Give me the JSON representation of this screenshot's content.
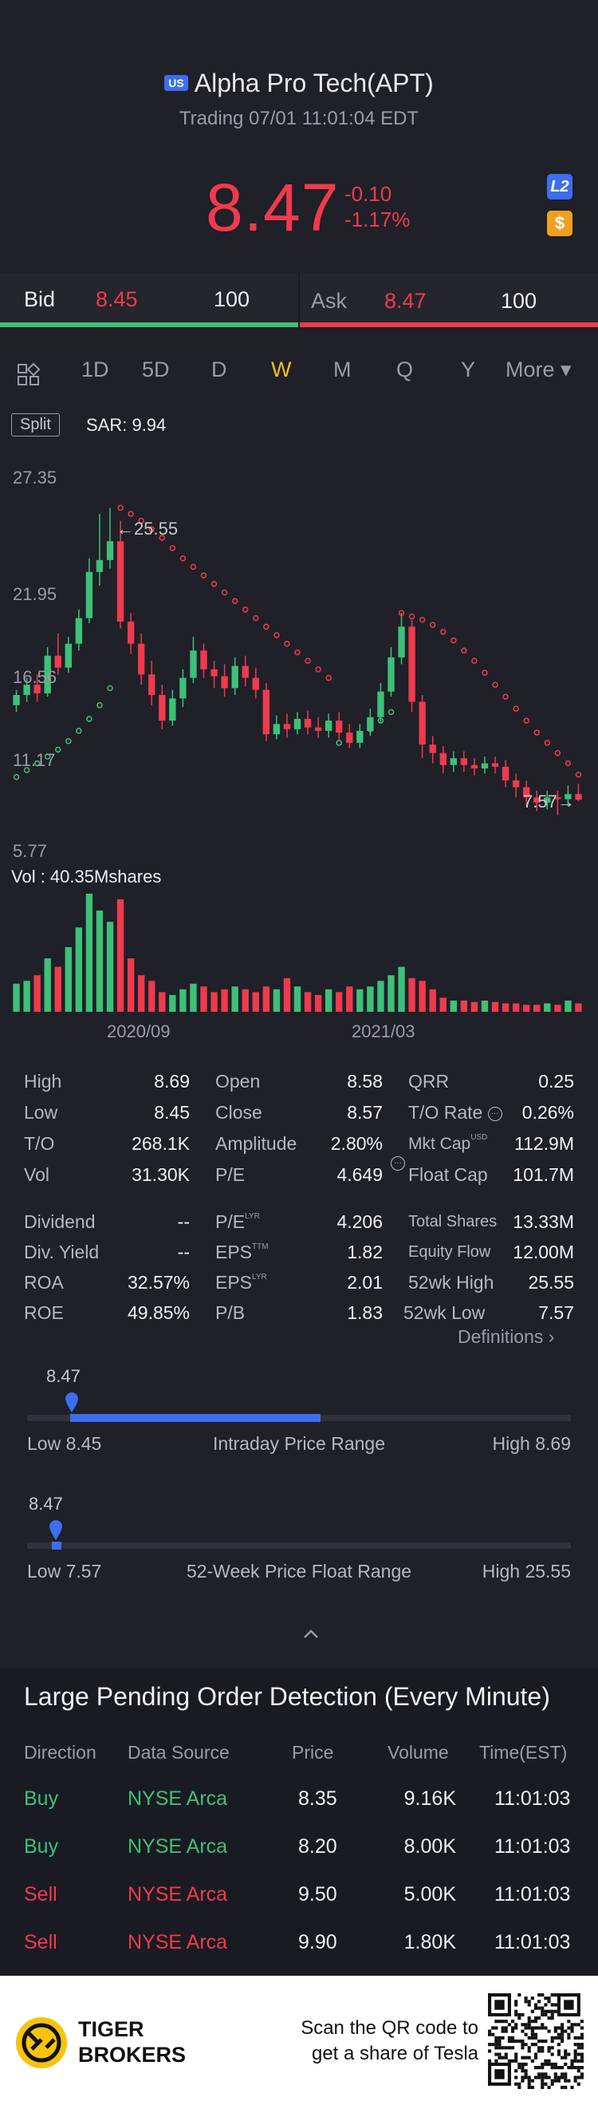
{
  "header": {
    "market_badge": "US",
    "title": "Alpha Pro Tech(APT)",
    "status": "Trading 07/01 11:01:04 EDT",
    "price": "8.47",
    "change": "-0.10",
    "change_pct": "-1.17%",
    "l2_badge": "L2",
    "currency_badge": "$"
  },
  "quote": {
    "bid_label": "Bid",
    "bid_price": "8.45",
    "bid_size": "100",
    "ask_label": "Ask",
    "ask_price": "8.47",
    "ask_size": "100"
  },
  "tabs": {
    "grid_icon": "grid-icon",
    "items": [
      "1D",
      "5D",
      "D",
      "W",
      "M",
      "Q",
      "Y"
    ],
    "active": "W",
    "more": "More ▾"
  },
  "chart": {
    "split_label": "Split",
    "sar_label": "SAR: 9.94",
    "y_ticks": [
      "27.35",
      "21.95",
      "16.56",
      "11.17",
      "5.77"
    ],
    "high_marker": "←25.55",
    "low_marker": "7.57→",
    "volume_label": "Vol  : 40.35Mshares",
    "x_ticks": [
      "2020/09",
      "2021/03"
    ]
  },
  "chart_data": {
    "type": "candlestick",
    "title": "",
    "ylim": [
      5.77,
      27.35
    ],
    "y_ticks": [
      27.35,
      21.95,
      16.56,
      11.17,
      5.77
    ],
    "x_ticks": [
      "2020/09",
      "2021/03"
    ],
    "period": "W",
    "indicator": "SAR",
    "sar_value": 9.94,
    "period_high": 25.55,
    "period_low": 7.57,
    "volume_total": "40.35Mshares",
    "candles": [
      {
        "o": 14.0,
        "c": 14.6,
        "h": 14.9,
        "l": 13.6
      },
      {
        "o": 14.6,
        "c": 15.2,
        "h": 15.6,
        "l": 14.2
      },
      {
        "o": 15.2,
        "c": 14.7,
        "h": 15.8,
        "l": 14.2
      },
      {
        "o": 14.7,
        "c": 16.9,
        "h": 17.4,
        "l": 14.5
      },
      {
        "o": 16.9,
        "c": 16.2,
        "h": 18.2,
        "l": 15.8
      },
      {
        "o": 16.2,
        "c": 17.6,
        "h": 18.0,
        "l": 15.9
      },
      {
        "o": 17.6,
        "c": 19.1,
        "h": 19.6,
        "l": 17.2
      },
      {
        "o": 19.1,
        "c": 21.8,
        "h": 22.6,
        "l": 18.8
      },
      {
        "o": 21.8,
        "c": 22.5,
        "h": 25.2,
        "l": 21.0
      },
      {
        "o": 22.5,
        "c": 23.6,
        "h": 25.55,
        "l": 22.0
      },
      {
        "o": 23.6,
        "c": 18.9,
        "h": 24.8,
        "l": 18.5
      },
      {
        "o": 18.9,
        "c": 17.6,
        "h": 19.4,
        "l": 17.0
      },
      {
        "o": 17.6,
        "c": 15.8,
        "h": 18.2,
        "l": 15.2
      },
      {
        "o": 15.8,
        "c": 14.6,
        "h": 16.6,
        "l": 14.0
      },
      {
        "o": 14.6,
        "c": 13.1,
        "h": 15.2,
        "l": 12.6
      },
      {
        "o": 13.1,
        "c": 14.4,
        "h": 14.9,
        "l": 12.8
      },
      {
        "o": 14.4,
        "c": 15.6,
        "h": 16.1,
        "l": 13.9
      },
      {
        "o": 15.6,
        "c": 17.2,
        "h": 18.0,
        "l": 15.3
      },
      {
        "o": 17.2,
        "c": 16.1,
        "h": 17.6,
        "l": 15.6
      },
      {
        "o": 16.1,
        "c": 15.7,
        "h": 16.6,
        "l": 15.0
      },
      {
        "o": 15.7,
        "c": 15.0,
        "h": 16.4,
        "l": 14.5
      },
      {
        "o": 15.0,
        "c": 16.3,
        "h": 16.8,
        "l": 14.6
      },
      {
        "o": 16.3,
        "c": 15.6,
        "h": 16.9,
        "l": 15.1
      },
      {
        "o": 15.6,
        "c": 14.9,
        "h": 16.2,
        "l": 14.4
      },
      {
        "o": 14.9,
        "c": 12.3,
        "h": 15.3,
        "l": 11.9
      },
      {
        "o": 12.3,
        "c": 12.9,
        "h": 13.4,
        "l": 12.0
      },
      {
        "o": 12.9,
        "c": 12.6,
        "h": 13.5,
        "l": 12.1
      },
      {
        "o": 12.6,
        "c": 13.2,
        "h": 13.6,
        "l": 12.3
      },
      {
        "o": 13.2,
        "c": 12.7,
        "h": 13.7,
        "l": 12.3
      },
      {
        "o": 12.7,
        "c": 12.5,
        "h": 13.3,
        "l": 12.1
      },
      {
        "o": 12.5,
        "c": 13.1,
        "h": 13.5,
        "l": 12.1
      },
      {
        "o": 13.1,
        "c": 12.4,
        "h": 13.6,
        "l": 12.0
      },
      {
        "o": 12.4,
        "c": 11.8,
        "h": 12.9,
        "l": 11.5
      },
      {
        "o": 11.8,
        "c": 12.5,
        "h": 12.9,
        "l": 11.5
      },
      {
        "o": 12.5,
        "c": 13.3,
        "h": 13.8,
        "l": 12.2
      },
      {
        "o": 13.3,
        "c": 14.8,
        "h": 15.3,
        "l": 13.0
      },
      {
        "o": 14.8,
        "c": 16.8,
        "h": 17.4,
        "l": 14.5
      },
      {
        "o": 16.8,
        "c": 18.6,
        "h": 19.4,
        "l": 16.4
      },
      {
        "o": 18.6,
        "c": 14.2,
        "h": 19.0,
        "l": 13.6
      },
      {
        "o": 14.2,
        "c": 11.7,
        "h": 14.6,
        "l": 10.9
      },
      {
        "o": 11.7,
        "c": 11.2,
        "h": 12.2,
        "l": 10.6
      },
      {
        "o": 11.2,
        "c": 10.5,
        "h": 11.6,
        "l": 10.0
      },
      {
        "o": 10.5,
        "c": 10.9,
        "h": 11.3,
        "l": 10.1
      },
      {
        "o": 10.9,
        "c": 10.5,
        "h": 11.3,
        "l": 10.1
      },
      {
        "o": 10.5,
        "c": 10.3,
        "h": 10.9,
        "l": 9.9
      },
      {
        "o": 10.3,
        "c": 10.6,
        "h": 11.0,
        "l": 10.0
      },
      {
        "o": 10.6,
        "c": 10.4,
        "h": 11.0,
        "l": 10.0
      },
      {
        "o": 10.4,
        "c": 9.6,
        "h": 10.8,
        "l": 9.2
      },
      {
        "o": 9.6,
        "c": 9.2,
        "h": 10.0,
        "l": 8.6
      },
      {
        "o": 9.2,
        "c": 8.6,
        "h": 9.6,
        "l": 8.1
      },
      {
        "o": 8.6,
        "c": 8.3,
        "h": 9.0,
        "l": 7.8
      },
      {
        "o": 8.3,
        "c": 8.6,
        "h": 9.0,
        "l": 7.9
      },
      {
        "o": 8.6,
        "c": 8.5,
        "h": 9.0,
        "l": 7.57
      },
      {
        "o": 8.5,
        "c": 8.8,
        "h": 9.3,
        "l": 8.1
      },
      {
        "o": 8.8,
        "c": 8.47,
        "h": 9.4,
        "l": 8.4
      }
    ],
    "sar": [
      9.8,
      10.2,
      10.6,
      11.0,
      11.4,
      11.9,
      12.5,
      13.2,
      14.0,
      15.0,
      25.55,
      25.2,
      24.8,
      24.3,
      23.8,
      23.2,
      22.6,
      22.1,
      21.6,
      21.1,
      20.6,
      20.1,
      19.6,
      19.1,
      18.6,
      18.1,
      17.6,
      17.1,
      16.6,
      16.1,
      15.6,
      11.8,
      12.0,
      12.2,
      12.6,
      13.1,
      13.6,
      19.4,
      19.2,
      19.0,
      18.7,
      18.3,
      17.8,
      17.2,
      16.6,
      15.9,
      15.2,
      14.5,
      13.8,
      13.1,
      12.4,
      11.8,
      11.2,
      10.6,
      9.94
    ],
    "volume": [
      20,
      22,
      26,
      38,
      32,
      46,
      60,
      84,
      72,
      64,
      80,
      38,
      26,
      22,
      14,
      12,
      16,
      20,
      18,
      14,
      16,
      18,
      16,
      14,
      18,
      16,
      24,
      18,
      14,
      12,
      16,
      14,
      18,
      16,
      18,
      22,
      26,
      32,
      24,
      22,
      16,
      10,
      8,
      8,
      7,
      8,
      7,
      6,
      6,
      5,
      5,
      6,
      5,
      8,
      6
    ]
  },
  "stats": {
    "col1": [
      {
        "label": "High",
        "value": "8.69"
      },
      {
        "label": "Low",
        "value": "8.45"
      },
      {
        "label": "T/O",
        "value": "268.1K"
      },
      {
        "label": "Vol",
        "value": "31.30K"
      }
    ],
    "col2": [
      {
        "label": "Open",
        "value": "8.58"
      },
      {
        "label": "Close",
        "value": "8.57"
      },
      {
        "label": "Amplitude",
        "value": "2.80%"
      },
      {
        "label": "P/E",
        "value": "4.649"
      }
    ],
    "col3": [
      {
        "label": "QRR",
        "value": "0.25"
      },
      {
        "label": "T/O Rate",
        "value": "0.26%"
      },
      {
        "label": "Mkt Cap",
        "value": "112.9M"
      },
      {
        "label": "Float Cap",
        "value": "101.7M"
      }
    ],
    "col1b": [
      {
        "label": "Dividend",
        "value": "--"
      },
      {
        "label": "Div. Yield",
        "value": "--"
      },
      {
        "label": "ROA",
        "value": "32.57%"
      },
      {
        "label": "ROE",
        "value": "49.85%"
      }
    ],
    "col2b": [
      {
        "label": "P/E",
        "sup": "LYR",
        "value": "4.206"
      },
      {
        "label": "EPS",
        "sup": "TTM",
        "value": "1.82"
      },
      {
        "label": "EPS",
        "sup": "LYR",
        "value": "2.01"
      },
      {
        "label": "P/B",
        "value": "1.83"
      }
    ],
    "col3b": [
      {
        "label": "Total Shares",
        "value": "13.33M"
      },
      {
        "label": "Equity Flow",
        "value": "12.00M"
      },
      {
        "label": "52wk High",
        "value": "25.55"
      },
      {
        "label": "52wk Low",
        "value": "7.57"
      }
    ],
    "mkt_cap_currency": "USD",
    "definitions": "Definitions"
  },
  "intraday_range": {
    "current": "8.47",
    "low_label": "Low 8.45",
    "title": "Intraday Price Range",
    "high_label": "High 8.69",
    "marker_fraction": 0.08,
    "fill_start": 0.08,
    "fill_end": 0.54
  },
  "week52_range": {
    "current": "8.47",
    "low_label": "Low 7.57",
    "title": "52-Week Price Float Range",
    "high_label": "High 25.55",
    "marker_fraction": 0.05
  },
  "orders": {
    "title": "Large Pending Order Detection (Every Minute)",
    "headers": [
      "Direction",
      "Data Source",
      "Price",
      "Volume",
      "Time(EST)"
    ],
    "rows": [
      {
        "dir": "Buy",
        "src": "NYSE Arca",
        "price": "8.35",
        "vol": "9.16K",
        "time": "11:01:03",
        "side": "buy"
      },
      {
        "dir": "Buy",
        "src": "NYSE Arca",
        "price": "8.20",
        "vol": "8.00K",
        "time": "11:01:03",
        "side": "buy"
      },
      {
        "dir": "Sell",
        "src": "NYSE Arca",
        "price": "9.50",
        "vol": "5.00K",
        "time": "11:01:03",
        "side": "sell"
      },
      {
        "dir": "Sell",
        "src": "NYSE Arca",
        "price": "9.90",
        "vol": "1.80K",
        "time": "11:01:03",
        "side": "sell"
      }
    ]
  },
  "footer": {
    "brand_line1": "TIGER",
    "brand_line2": "BROKERS",
    "cta_line1": "Scan the QR code to",
    "cta_line2": "get a share of Tesla"
  },
  "colors": {
    "up": "#3dc178",
    "down": "#f03a4d",
    "accent": "#3d6df0",
    "active_tab": "#f0c020"
  }
}
